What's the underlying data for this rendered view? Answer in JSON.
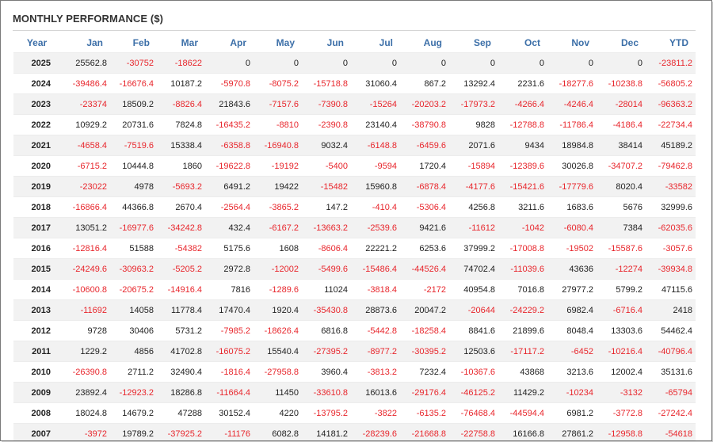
{
  "title": "MONTHLY PERFORMANCE ($)",
  "colors": {
    "header_text": "#3c6fa8",
    "negative": "#e8262c",
    "positive": "#222222",
    "row_stripe": "#f2f2f2"
  },
  "columns": [
    "Year",
    "Jan",
    "Feb",
    "Mar",
    "Apr",
    "May",
    "Jun",
    "Jul",
    "Aug",
    "Sep",
    "Oct",
    "Nov",
    "Dec",
    "YTD"
  ],
  "rows": [
    [
      "2025",
      "25562.8",
      "-30752",
      "-18622",
      "0",
      "0",
      "0",
      "0",
      "0",
      "0",
      "0",
      "0",
      "0",
      "-23811.2"
    ],
    [
      "2024",
      "-39486.4",
      "-16676.4",
      "10187.2",
      "-5970.8",
      "-8075.2",
      "-15718.8",
      "31060.4",
      "867.2",
      "13292.4",
      "2231.6",
      "-18277.6",
      "-10238.8",
      "-56805.2"
    ],
    [
      "2023",
      "-23374",
      "18509.2",
      "-8826.4",
      "21843.6",
      "-7157.6",
      "-7390.8",
      "-15264",
      "-20203.2",
      "-17973.2",
      "-4266.4",
      "-4246.4",
      "-28014",
      "-96363.2"
    ],
    [
      "2022",
      "10929.2",
      "20731.6",
      "7824.8",
      "-16435.2",
      "-8810",
      "-2390.8",
      "23140.4",
      "-38790.8",
      "9828",
      "-12788.8",
      "-11786.4",
      "-4186.4",
      "-22734.4"
    ],
    [
      "2021",
      "-4658.4",
      "-7519.6",
      "15338.4",
      "-6358.8",
      "-16940.8",
      "9032.4",
      "-6148.8",
      "-6459.6",
      "2071.6",
      "9434",
      "18984.8",
      "38414",
      "45189.2"
    ],
    [
      "2020",
      "-6715.2",
      "10444.8",
      "1860",
      "-19622.8",
      "-19192",
      "-5400",
      "-9594",
      "1720.4",
      "-15894",
      "-12389.6",
      "30026.8",
      "-34707.2",
      "-79462.8"
    ],
    [
      "2019",
      "-23022",
      "4978",
      "-5693.2",
      "6491.2",
      "19422",
      "-15482",
      "15960.8",
      "-6878.4",
      "-4177.6",
      "-15421.6",
      "-17779.6",
      "8020.4",
      "-33582"
    ],
    [
      "2018",
      "-16866.4",
      "44366.8",
      "2670.4",
      "-2564.4",
      "-3865.2",
      "147.2",
      "-410.4",
      "-5306.4",
      "4256.8",
      "3211.6",
      "1683.6",
      "5676",
      "32999.6"
    ],
    [
      "2017",
      "13051.2",
      "-16977.6",
      "-34242.8",
      "432.4",
      "-6167.2",
      "-13663.2",
      "-2539.6",
      "9421.6",
      "-11612",
      "-1042",
      "-6080.4",
      "7384",
      "-62035.6"
    ],
    [
      "2016",
      "-12816.4",
      "51588",
      "-54382",
      "5175.6",
      "1608",
      "-8606.4",
      "22221.2",
      "6253.6",
      "37999.2",
      "-17008.8",
      "-19502",
      "-15587.6",
      "-3057.6"
    ],
    [
      "2015",
      "-24249.6",
      "-30963.2",
      "-5205.2",
      "2972.8",
      "-12002",
      "-5499.6",
      "-15486.4",
      "-44526.4",
      "74702.4",
      "-11039.6",
      "43636",
      "-12274",
      "-39934.8"
    ],
    [
      "2014",
      "-10600.8",
      "-20675.2",
      "-14916.4",
      "7816",
      "-1289.6",
      "11024",
      "-3818.4",
      "-2172",
      "40954.8",
      "7016.8",
      "27977.2",
      "5799.2",
      "47115.6"
    ],
    [
      "2013",
      "-11692",
      "14058",
      "11778.4",
      "17470.4",
      "1920.4",
      "-35430.8",
      "28873.6",
      "20047.2",
      "-20644",
      "-24229.2",
      "6982.4",
      "-6716.4",
      "2418"
    ],
    [
      "2012",
      "9728",
      "30406",
      "5731.2",
      "-7985.2",
      "-18626.4",
      "6816.8",
      "-5442.8",
      "-18258.4",
      "8841.6",
      "21899.6",
      "8048.4",
      "13303.6",
      "54462.4"
    ],
    [
      "2011",
      "1229.2",
      "4856",
      "41702.8",
      "-16075.2",
      "15540.4",
      "-27395.2",
      "-8977.2",
      "-30395.2",
      "12503.6",
      "-17117.2",
      "-6452",
      "-10216.4",
      "-40796.4"
    ],
    [
      "2010",
      "-26390.8",
      "2711.2",
      "32490.4",
      "-1816.4",
      "-27958.8",
      "3960.4",
      "-3813.2",
      "7232.4",
      "-10367.6",
      "43868",
      "3213.6",
      "12002.4",
      "35131.6"
    ],
    [
      "2009",
      "23892.4",
      "-12923.2",
      "18286.8",
      "-11664.4",
      "11450",
      "-33610.8",
      "16013.6",
      "-29176.4",
      "-46125.2",
      "11429.2",
      "-10234",
      "-3132",
      "-65794"
    ],
    [
      "2008",
      "18024.8",
      "14679.2",
      "47288",
      "30152.4",
      "4220",
      "-13795.2",
      "-3822",
      "-6135.2",
      "-76468.4",
      "-44594.4",
      "6981.2",
      "-3772.8",
      "-27242.4"
    ],
    [
      "2007",
      "-3972",
      "19789.2",
      "-37925.2",
      "-11176",
      "6082.8",
      "14181.2",
      "-28239.6",
      "-21668.8",
      "-22758.8",
      "16166.8",
      "27861.2",
      "-12958.8",
      "-54618"
    ]
  ]
}
